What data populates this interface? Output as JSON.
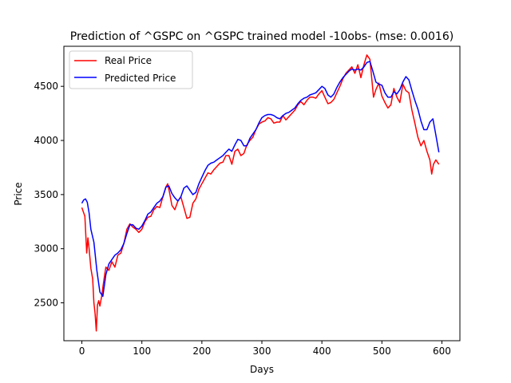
{
  "chart_data": {
    "type": "line",
    "title": "Prediction of ^GSPC on ^GSPC trained model -10obs- (mse: 0.0016)",
    "xlabel": "Days",
    "ylabel": "Price",
    "xlim": [
      -30,
      630
    ],
    "ylim": [
      2150,
      4870
    ],
    "xticks": [
      0,
      100,
      200,
      300,
      400,
      500,
      600
    ],
    "yticks": [
      2500,
      3000,
      3500,
      4000,
      4500
    ],
    "grid": false,
    "legend_position": "top-left",
    "series": [
      {
        "name": "Real Price",
        "color": "#ff0000",
        "points": [
          [
            0,
            3380
          ],
          [
            5,
            3300
          ],
          [
            8,
            2960
          ],
          [
            10,
            3100
          ],
          [
            12,
            3000
          ],
          [
            15,
            2820
          ],
          [
            18,
            2720
          ],
          [
            20,
            2500
          ],
          [
            22,
            2400
          ],
          [
            24,
            2240
          ],
          [
            26,
            2480
          ],
          [
            28,
            2520
          ],
          [
            30,
            2470
          ],
          [
            33,
            2560
          ],
          [
            35,
            2640
          ],
          [
            38,
            2760
          ],
          [
            40,
            2830
          ],
          [
            45,
            2800
          ],
          [
            50,
            2880
          ],
          [
            55,
            2830
          ],
          [
            60,
            2940
          ],
          [
            65,
            2960
          ],
          [
            70,
            3050
          ],
          [
            75,
            3180
          ],
          [
            80,
            3230
          ],
          [
            85,
            3200
          ],
          [
            90,
            3180
          ],
          [
            95,
            3150
          ],
          [
            100,
            3180
          ],
          [
            105,
            3250
          ],
          [
            110,
            3290
          ],
          [
            115,
            3300
          ],
          [
            120,
            3360
          ],
          [
            125,
            3390
          ],
          [
            130,
            3380
          ],
          [
            135,
            3480
          ],
          [
            140,
            3570
          ],
          [
            143,
            3600
          ],
          [
            146,
            3520
          ],
          [
            150,
            3400
          ],
          [
            155,
            3360
          ],
          [
            160,
            3440
          ],
          [
            165,
            3480
          ],
          [
            170,
            3380
          ],
          [
            175,
            3280
          ],
          [
            180,
            3290
          ],
          [
            185,
            3420
          ],
          [
            190,
            3460
          ],
          [
            195,
            3550
          ],
          [
            200,
            3600
          ],
          [
            205,
            3650
          ],
          [
            210,
            3700
          ],
          [
            215,
            3690
          ],
          [
            220,
            3730
          ],
          [
            225,
            3760
          ],
          [
            230,
            3790
          ],
          [
            235,
            3800
          ],
          [
            240,
            3860
          ],
          [
            245,
            3860
          ],
          [
            250,
            3780
          ],
          [
            255,
            3900
          ],
          [
            260,
            3920
          ],
          [
            265,
            3860
          ],
          [
            270,
            3880
          ],
          [
            275,
            3960
          ],
          [
            280,
            4000
          ],
          [
            285,
            4030
          ],
          [
            290,
            4100
          ],
          [
            295,
            4150
          ],
          [
            300,
            4170
          ],
          [
            305,
            4180
          ],
          [
            310,
            4210
          ],
          [
            315,
            4200
          ],
          [
            320,
            4160
          ],
          [
            325,
            4170
          ],
          [
            330,
            4170
          ],
          [
            335,
            4230
          ],
          [
            340,
            4190
          ],
          [
            345,
            4220
          ],
          [
            350,
            4250
          ],
          [
            355,
            4280
          ],
          [
            360,
            4330
          ],
          [
            365,
            4360
          ],
          [
            370,
            4330
          ],
          [
            375,
            4370
          ],
          [
            380,
            4400
          ],
          [
            385,
            4400
          ],
          [
            390,
            4390
          ],
          [
            395,
            4430
          ],
          [
            400,
            4460
          ],
          [
            405,
            4400
          ],
          [
            410,
            4340
          ],
          [
            415,
            4350
          ],
          [
            420,
            4380
          ],
          [
            425,
            4440
          ],
          [
            430,
            4500
          ],
          [
            435,
            4570
          ],
          [
            440,
            4620
          ],
          [
            445,
            4650
          ],
          [
            450,
            4680
          ],
          [
            455,
            4620
          ],
          [
            460,
            4700
          ],
          [
            465,
            4580
          ],
          [
            470,
            4700
          ],
          [
            475,
            4790
          ],
          [
            480,
            4750
          ],
          [
            483,
            4580
          ],
          [
            486,
            4400
          ],
          [
            490,
            4470
          ],
          [
            495,
            4530
          ],
          [
            500,
            4410
          ],
          [
            505,
            4350
          ],
          [
            510,
            4300
          ],
          [
            515,
            4330
          ],
          [
            520,
            4480
          ],
          [
            525,
            4400
          ],
          [
            530,
            4350
          ],
          [
            535,
            4520
          ],
          [
            540,
            4460
          ],
          [
            545,
            4440
          ],
          [
            550,
            4280
          ],
          [
            555,
            4160
          ],
          [
            560,
            4030
          ],
          [
            565,
            3950
          ],
          [
            570,
            4000
          ],
          [
            575,
            3900
          ],
          [
            580,
            3820
          ],
          [
            583,
            3690
          ],
          [
            586,
            3780
          ],
          [
            590,
            3820
          ],
          [
            595,
            3780
          ]
        ]
      },
      {
        "name": "Predicted Price",
        "color": "#0000ff",
        "points": [
          [
            0,
            3420
          ],
          [
            3,
            3450
          ],
          [
            6,
            3460
          ],
          [
            9,
            3430
          ],
          [
            12,
            3330
          ],
          [
            15,
            3180
          ],
          [
            20,
            3060
          ],
          [
            25,
            2800
          ],
          [
            30,
            2600
          ],
          [
            35,
            2560
          ],
          [
            40,
            2760
          ],
          [
            45,
            2860
          ],
          [
            50,
            2900
          ],
          [
            55,
            2940
          ],
          [
            60,
            2960
          ],
          [
            65,
            2990
          ],
          [
            70,
            3050
          ],
          [
            75,
            3140
          ],
          [
            80,
            3220
          ],
          [
            85,
            3220
          ],
          [
            90,
            3190
          ],
          [
            95,
            3180
          ],
          [
            100,
            3210
          ],
          [
            105,
            3260
          ],
          [
            110,
            3320
          ],
          [
            115,
            3340
          ],
          [
            120,
            3380
          ],
          [
            125,
            3420
          ],
          [
            130,
            3440
          ],
          [
            135,
            3480
          ],
          [
            140,
            3570
          ],
          [
            145,
            3580
          ],
          [
            150,
            3510
          ],
          [
            155,
            3470
          ],
          [
            160,
            3440
          ],
          [
            165,
            3480
          ],
          [
            170,
            3560
          ],
          [
            175,
            3580
          ],
          [
            180,
            3540
          ],
          [
            185,
            3500
          ],
          [
            190,
            3520
          ],
          [
            195,
            3600
          ],
          [
            200,
            3660
          ],
          [
            205,
            3720
          ],
          [
            210,
            3770
          ],
          [
            215,
            3790
          ],
          [
            220,
            3800
          ],
          [
            225,
            3820
          ],
          [
            230,
            3840
          ],
          [
            235,
            3860
          ],
          [
            240,
            3890
          ],
          [
            245,
            3920
          ],
          [
            250,
            3900
          ],
          [
            255,
            3960
          ],
          [
            260,
            4010
          ],
          [
            265,
            4000
          ],
          [
            270,
            3950
          ],
          [
            275,
            3950
          ],
          [
            280,
            4020
          ],
          [
            285,
            4060
          ],
          [
            290,
            4100
          ],
          [
            295,
            4160
          ],
          [
            300,
            4210
          ],
          [
            305,
            4230
          ],
          [
            310,
            4240
          ],
          [
            315,
            4240
          ],
          [
            320,
            4230
          ],
          [
            325,
            4210
          ],
          [
            330,
            4200
          ],
          [
            335,
            4230
          ],
          [
            340,
            4250
          ],
          [
            345,
            4260
          ],
          [
            350,
            4280
          ],
          [
            355,
            4300
          ],
          [
            360,
            4340
          ],
          [
            365,
            4370
          ],
          [
            370,
            4390
          ],
          [
            375,
            4400
          ],
          [
            380,
            4420
          ],
          [
            385,
            4430
          ],
          [
            390,
            4440
          ],
          [
            395,
            4470
          ],
          [
            400,
            4500
          ],
          [
            405,
            4480
          ],
          [
            410,
            4420
          ],
          [
            415,
            4400
          ],
          [
            420,
            4430
          ],
          [
            425,
            4490
          ],
          [
            430,
            4540
          ],
          [
            435,
            4580
          ],
          [
            440,
            4610
          ],
          [
            445,
            4640
          ],
          [
            450,
            4660
          ],
          [
            455,
            4650
          ],
          [
            460,
            4660
          ],
          [
            465,
            4650
          ],
          [
            470,
            4680
          ],
          [
            475,
            4720
          ],
          [
            480,
            4730
          ],
          [
            485,
            4640
          ],
          [
            490,
            4540
          ],
          [
            495,
            4520
          ],
          [
            500,
            4510
          ],
          [
            505,
            4440
          ],
          [
            510,
            4400
          ],
          [
            515,
            4400
          ],
          [
            520,
            4450
          ],
          [
            525,
            4430
          ],
          [
            530,
            4470
          ],
          [
            535,
            4540
          ],
          [
            540,
            4590
          ],
          [
            545,
            4560
          ],
          [
            550,
            4460
          ],
          [
            555,
            4370
          ],
          [
            560,
            4290
          ],
          [
            565,
            4180
          ],
          [
            570,
            4100
          ],
          [
            575,
            4100
          ],
          [
            580,
            4170
          ],
          [
            585,
            4200
          ],
          [
            590,
            4050
          ],
          [
            595,
            3890
          ]
        ]
      }
    ]
  }
}
